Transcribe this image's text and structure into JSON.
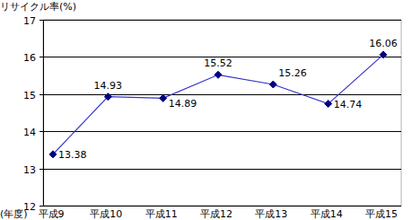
{
  "chart_data": {
    "type": "line",
    "y_label": "リサイクル率(%)",
    "x_label": "(年度)",
    "categories": [
      "平成9",
      "平成10",
      "平成11",
      "平成12",
      "平成13",
      "平成14",
      "平成15"
    ],
    "values": [
      13.38,
      14.93,
      14.89,
      15.52,
      15.26,
      14.74,
      16.06
    ],
    "color": "#3333cc",
    "marker": "diamond",
    "ylim": [
      12,
      17
    ],
    "yticks": [
      12,
      13,
      14,
      15,
      16,
      17
    ],
    "grid": true,
    "data_labels": true
  }
}
